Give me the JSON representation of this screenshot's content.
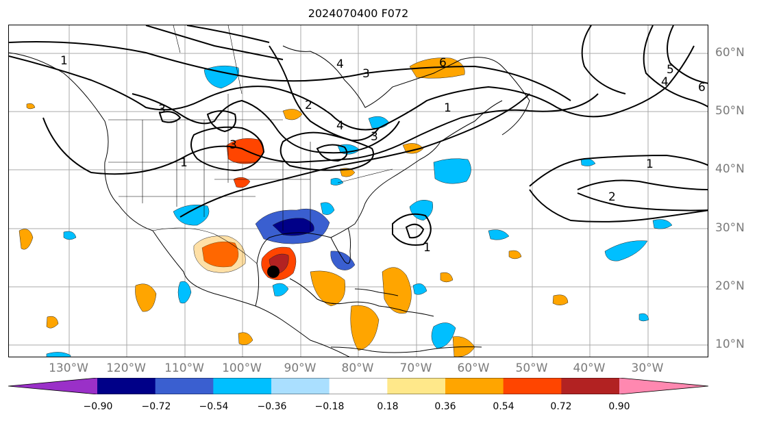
{
  "title": "2024070400 F072",
  "lat_labels": [
    "60°N",
    "50°N",
    "40°N",
    "30°N",
    "20°N",
    "10°N"
  ],
  "lon_labels": [
    "130°W",
    "120°W",
    "110°W",
    "100°W",
    "90°W",
    "80°W",
    "70°W",
    "60°W",
    "50°W",
    "40°W",
    "30°W"
  ],
  "colorbar": {
    "ticks": [
      "−0.90",
      "−0.72",
      "−0.54",
      "−0.36",
      "−0.18",
      "0.18",
      "0.36",
      "0.54",
      "0.72",
      "0.90"
    ],
    "colors": [
      "#9a30c8",
      "#000088",
      "#3a5fd0",
      "#00bfff",
      "#aadfff",
      "#ffffff",
      "#ffe88a",
      "#ffa500",
      "#ff4500",
      "#b22222",
      "#ff88b0"
    ],
    "extend": "both"
  },
  "contour_labels": [
    "1",
    "1",
    "1",
    "1",
    "1",
    "2",
    "2",
    "3",
    "3",
    "3",
    "3",
    "4",
    "4",
    "4",
    "5",
    "6",
    "6"
  ],
  "marker": "storm-center"
}
